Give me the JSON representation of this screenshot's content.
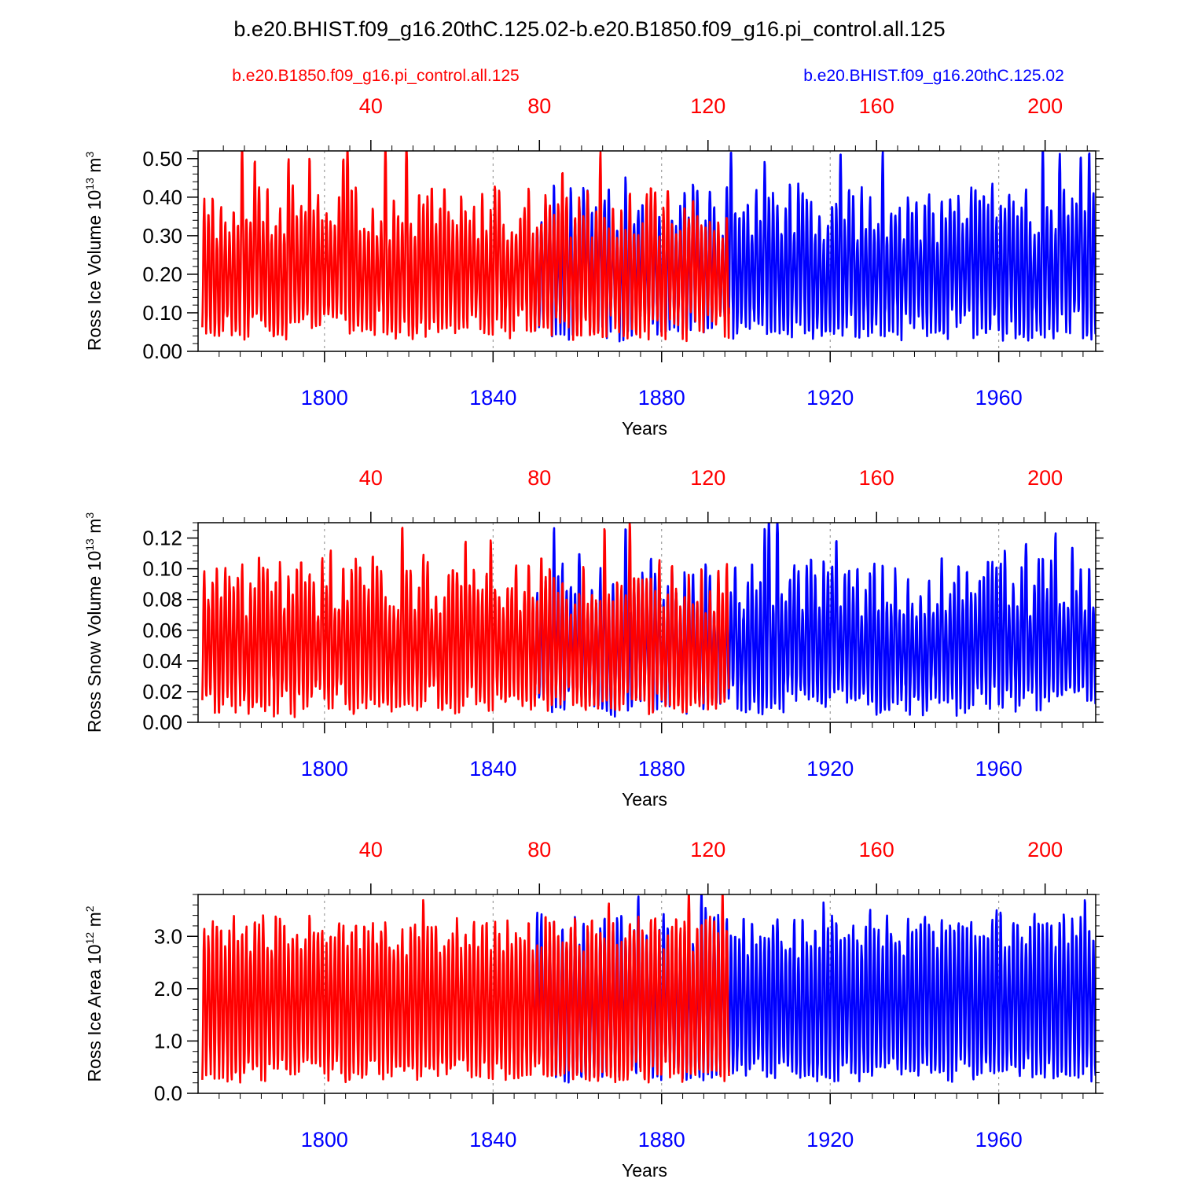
{
  "title": "b.e20.BHIST.f09_g16.20thC.125.02-b.e20.B1850.f09_g16.pi_control.all.125",
  "legend": {
    "control": {
      "label": "b.e20.B1850.f09_g16.pi_control.all.125",
      "color": "#ff0000"
    },
    "hist": {
      "label": "b.e20.BHIST.f09_g16.20thC.125.02",
      "color": "#0000ff"
    }
  },
  "chart_data": [
    {
      "type": "line",
      "ylabel_main": "Ross Ice Volume 10",
      "ylabel_exp": "13",
      "ylabel_unit": " m",
      "ylabel_unit_exp": "3",
      "xlabel": "Years",
      "xlim_bottom": [
        1770,
        1983
      ],
      "xlim_top": [
        -1,
        212
      ],
      "ylim": [
        0,
        0.52
      ],
      "yticks": [
        0,
        0.1,
        0.2,
        0.3,
        0.4,
        0.5
      ],
      "ytick_labels": [
        "0.00",
        "0.10",
        "0.20",
        "0.30",
        "0.40",
        "0.50"
      ],
      "yminor_step": 0.02,
      "bottom_ticks": [
        1800,
        1840,
        1880,
        1920,
        1960
      ],
      "bottom_tick_labels": [
        "1800",
        "1840",
        "1880",
        "1920",
        "1960"
      ],
      "top_ticks": [
        40,
        80,
        120,
        160,
        200
      ],
      "top_tick_labels": [
        "40",
        "80",
        "120",
        "160",
        "200"
      ],
      "gridlines_x": [
        1800,
        1840,
        1880,
        1920,
        1960
      ],
      "series": [
        {
          "name": "b.e20.BHIST.f09_g16.20thC.125.02",
          "color": "#0000ff",
          "x_axis": "bottom",
          "x_start": 1850,
          "x_end": 1983,
          "seasonal_min": 0.07,
          "seasonal_max": 0.36,
          "noise": 0.06,
          "seed": 11
        },
        {
          "name": "b.e20.B1850.f09_g16.pi_control.all.125",
          "color": "#ff0000",
          "x_axis": "top",
          "x_start": 0,
          "x_end": 125,
          "seasonal_min": 0.07,
          "seasonal_max": 0.36,
          "noise": 0.06,
          "seed": 5
        }
      ]
    },
    {
      "type": "line",
      "ylabel_main": "Ross Snow Volume 10",
      "ylabel_exp": "13",
      "ylabel_unit": " m",
      "ylabel_unit_exp": "3",
      "xlabel": "Years",
      "xlim_bottom": [
        1770,
        1983
      ],
      "xlim_top": [
        -1,
        212
      ],
      "ylim": [
        0,
        0.13
      ],
      "yticks": [
        0,
        0.02,
        0.04,
        0.06,
        0.08,
        0.1,
        0.12
      ],
      "ytick_labels": [
        "0.00",
        "0.02",
        "0.04",
        "0.06",
        "0.08",
        "0.10",
        "0.12"
      ],
      "yminor_step": 0.005,
      "bottom_ticks": [
        1800,
        1840,
        1880,
        1920,
        1960
      ],
      "bottom_tick_labels": [
        "1800",
        "1840",
        "1880",
        "1920",
        "1960"
      ],
      "top_ticks": [
        40,
        80,
        120,
        160,
        200
      ],
      "top_tick_labels": [
        "40",
        "80",
        "120",
        "160",
        "200"
      ],
      "gridlines_x": [
        1800,
        1840,
        1880,
        1920,
        1960
      ],
      "series": [
        {
          "name": "b.e20.BHIST.f09_g16.20thC.125.02",
          "color": "#0000ff",
          "x_axis": "bottom",
          "x_start": 1850,
          "x_end": 1983,
          "seasonal_min": 0.015,
          "seasonal_max": 0.088,
          "noise": 0.015,
          "seed": 23
        },
        {
          "name": "b.e20.B1850.f09_g16.pi_control.all.125",
          "color": "#ff0000",
          "x_axis": "top",
          "x_start": 0,
          "x_end": 125,
          "seasonal_min": 0.015,
          "seasonal_max": 0.088,
          "noise": 0.015,
          "seed": 17
        }
      ]
    },
    {
      "type": "line",
      "ylabel_main": "Ross Ice Area 10",
      "ylabel_exp": "12",
      "ylabel_unit": " m",
      "ylabel_unit_exp": "2",
      "xlabel": "Years",
      "xlim_bottom": [
        1770,
        1983
      ],
      "xlim_top": [
        -1,
        212
      ],
      "ylim": [
        0,
        3.8
      ],
      "yticks": [
        0,
        1,
        2,
        3
      ],
      "ytick_labels": [
        "0.0",
        "1.0",
        "2.0",
        "3.0"
      ],
      "yminor_step": 0.2,
      "bottom_ticks": [
        1800,
        1840,
        1880,
        1920,
        1960
      ],
      "bottom_tick_labels": [
        "1800",
        "1840",
        "1880",
        "1920",
        "1960"
      ],
      "top_ticks": [
        40,
        80,
        120,
        160,
        200
      ],
      "top_tick_labels": [
        "40",
        "80",
        "120",
        "160",
        "200"
      ],
      "gridlines_x": [
        1800,
        1840,
        1880,
        1920,
        1960
      ],
      "series": [
        {
          "name": "b.e20.BHIST.f09_g16.20thC.125.02",
          "color": "#0000ff",
          "x_axis": "bottom",
          "x_start": 1850,
          "x_end": 1983,
          "seasonal_min": 0.45,
          "seasonal_max": 3.05,
          "noise": 0.3,
          "seed": 41
        },
        {
          "name": "b.e20.B1850.f09_g16.pi_control.all.125",
          "color": "#ff0000",
          "x_axis": "top",
          "x_start": 0,
          "x_end": 125,
          "seasonal_min": 0.45,
          "seasonal_max": 3.05,
          "noise": 0.3,
          "seed": 37
        }
      ]
    }
  ]
}
